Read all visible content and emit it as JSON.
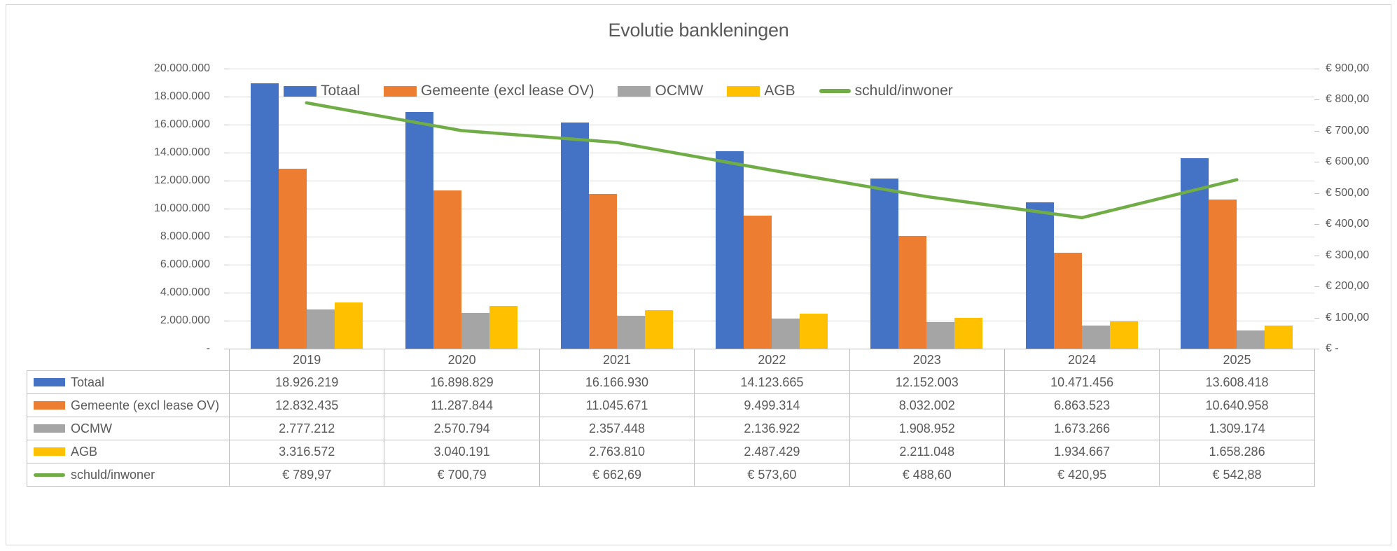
{
  "title": "Evolutie bankleningen",
  "colors": {
    "blue": "#4472C4",
    "orange": "#ED7D31",
    "gray": "#A5A5A5",
    "yellow": "#FFC000",
    "green": "#70AD47",
    "gridline": "#D9D9D9",
    "axis_text": "#595959",
    "table_border": "#BFBFBF"
  },
  "chart_data": {
    "type": "bar",
    "title": "Evolutie bankleningen",
    "categories": [
      "2019",
      "2020",
      "2021",
      "2022",
      "2023",
      "2024",
      "2025"
    ],
    "series": [
      {
        "name": "Totaal",
        "type": "bar",
        "color": "#4472C4",
        "values": [
          18926219,
          16898829,
          16166930,
          14123665,
          12152003,
          10471456,
          13608418
        ]
      },
      {
        "name": "Gemeente (excl lease OV)",
        "type": "bar",
        "color": "#ED7D31",
        "values": [
          12832435,
          11287844,
          11045671,
          9499314,
          8032002,
          6863523,
          10640958
        ]
      },
      {
        "name": "OCMW",
        "type": "bar",
        "color": "#A5A5A5",
        "values": [
          2777212,
          2570794,
          2357448,
          2136922,
          1908952,
          1673266,
          1309174
        ]
      },
      {
        "name": "AGB",
        "type": "bar",
        "color": "#FFC000",
        "values": [
          3316572,
          3040191,
          2763810,
          2487429,
          2211048,
          1934667,
          1658286
        ]
      },
      {
        "name": "schuld/inwoner",
        "type": "line",
        "axis": "secondary",
        "color": "#70AD47",
        "values": [
          789.97,
          700.79,
          662.69,
          573.6,
          488.6,
          420.95,
          542.88
        ]
      }
    ],
    "left_axis": {
      "min": 0,
      "max": 20000000,
      "step": 2000000,
      "tick_labels": [
        "20.000.000",
        "18.000.000",
        "16.000.000",
        "14.000.000",
        "12.000.000",
        "10.000.000",
        "8.000.000",
        "6.000.000",
        "4.000.000",
        "2.000.000",
        "-"
      ]
    },
    "right_axis": {
      "min": 0,
      "max": 900,
      "step": 100,
      "tick_labels": [
        "€ 900,00",
        "€ 800,00",
        "€ 700,00",
        "€ 600,00",
        "€ 500,00",
        "€ 400,00",
        "€ 300,00",
        "€ 200,00",
        "€ 100,00",
        "€ -"
      ]
    },
    "legend_position": "top-inside",
    "grid": true
  },
  "table": {
    "year_headers": [
      "2019",
      "2020",
      "2021",
      "2022",
      "2023",
      "2024",
      "2025"
    ],
    "rows": [
      {
        "label": "Totaal",
        "swatch": "bar",
        "color": "#4472C4",
        "values": [
          "18.926.219",
          "16.898.829",
          "16.166.930",
          "14.123.665",
          "12.152.003",
          "10.471.456",
          "13.608.418"
        ]
      },
      {
        "label": "Gemeente (excl lease OV)",
        "swatch": "bar",
        "color": "#ED7D31",
        "values": [
          "12.832.435",
          "11.287.844",
          "11.045.671",
          "9.499.314",
          "8.032.002",
          "6.863.523",
          "10.640.958"
        ]
      },
      {
        "label": "OCMW",
        "swatch": "bar",
        "color": "#A5A5A5",
        "values": [
          "2.777.212",
          "2.570.794",
          "2.357.448",
          "2.136.922",
          "1.908.952",
          "1.673.266",
          "1.309.174"
        ]
      },
      {
        "label": "AGB",
        "swatch": "bar",
        "color": "#FFC000",
        "values": [
          "3.316.572",
          "3.040.191",
          "2.763.810",
          "2.487.429",
          "2.211.048",
          "1.934.667",
          "1.658.286"
        ]
      },
      {
        "label": "schuld/inwoner",
        "swatch": "line",
        "color": "#70AD47",
        "values": [
          "€ 789,97",
          "€ 700,79",
          "€ 662,69",
          "€ 573,60",
          "€ 488,60",
          "€ 420,95",
          "€ 542,88"
        ]
      }
    ]
  }
}
